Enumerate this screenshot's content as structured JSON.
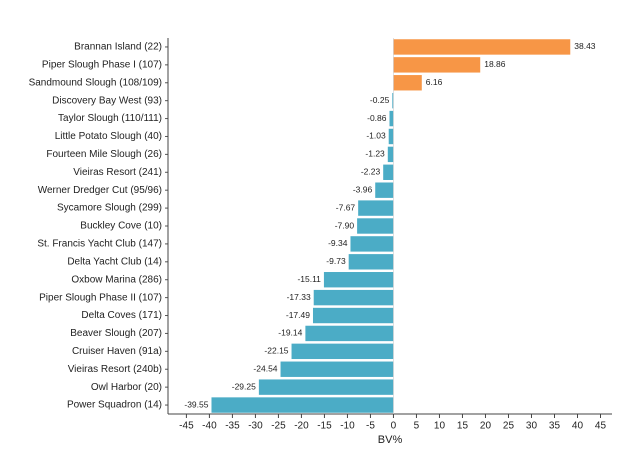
{
  "chart_data": {
    "type": "hbar",
    "categories": [
      "Brannan Island (22)",
      "Piper Slough Phase I (107)",
      "Sandmound Slough (108/109)",
      "Discovery Bay West (93)",
      "Taylor Slough (110/111)",
      "Little Potato Slough (40)",
      "Fourteen Mile Slough (26)",
      "Vieiras Resort (241)",
      "Werner Dredger Cut (95/96)",
      "Sycamore Slough (299)",
      "Buckley Cove (10)",
      "St. Francis Yacht Club (147)",
      "Delta Yacht Club (14)",
      "Oxbow Marina (286)",
      "Piper Slough Phase II (107)",
      "Delta Coves (171)",
      "Beaver Slough (207)",
      "Cruiser Haven (91a)",
      "Vieiras Resort (240b)",
      "Owl Harbor (20)",
      "Power Squadron (14)"
    ],
    "values": [
      38.43,
      18.86,
      6.16,
      -0.25,
      -0.86,
      -1.03,
      -1.23,
      -2.23,
      -3.96,
      -7.67,
      -7.9,
      -9.34,
      -9.73,
      -15.11,
      -17.33,
      -17.49,
      -19.14,
      -22.15,
      -24.54,
      -29.25,
      -39.55
    ],
    "value_labels": [
      "38.43",
      "18.86",
      "6.16",
      "-0.25",
      "-0.86",
      "-1.03",
      "-1.23",
      "-2.23",
      "-3.96",
      "-7.67",
      "-7.90",
      "-9.34",
      "-9.73",
      "-15.11",
      "-17.33",
      "-17.49",
      "-19.14",
      "-22.15",
      "-24.54",
      "-29.25",
      "-39.55"
    ],
    "colors": [
      "#f79646",
      "#f79646",
      "#f79646",
      "#4bacc6",
      "#4bacc6",
      "#4bacc6",
      "#4bacc6",
      "#4bacc6",
      "#4bacc6",
      "#4bacc6",
      "#4bacc6",
      "#4bacc6",
      "#4bacc6",
      "#4bacc6",
      "#4bacc6",
      "#4bacc6",
      "#4bacc6",
      "#4bacc6",
      "#4bacc6",
      "#4bacc6",
      "#4bacc6"
    ],
    "xlabel": "BV%",
    "xlim": [
      -49,
      47.5
    ],
    "xticks": [
      -45,
      -40,
      -35,
      -30,
      -25,
      -20,
      -15,
      -10,
      -5,
      0,
      5,
      10,
      15,
      20,
      25,
      30,
      35,
      40,
      45
    ]
  }
}
